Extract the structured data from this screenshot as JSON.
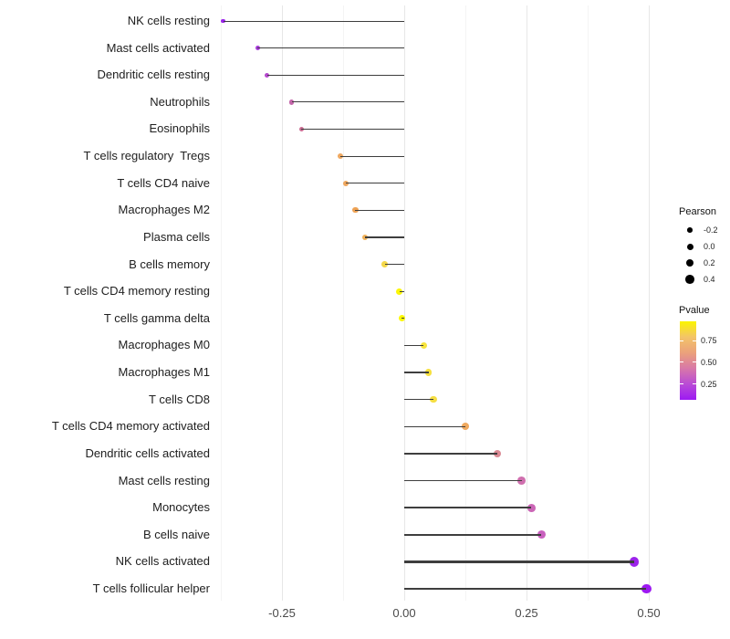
{
  "chart_data": {
    "type": "scatter",
    "variant": "horizontal-lollipop",
    "title": "",
    "xlabel": "",
    "ylabel": "",
    "xlim": [
      -0.385,
      0.565
    ],
    "x_ticks": [
      {
        "value": -0.25,
        "label": "-0.25"
      },
      {
        "value": 0.0,
        "label": "0.00"
      },
      {
        "value": 0.25,
        "label": "0.25"
      },
      {
        "value": 0.5,
        "label": "0.50"
      }
    ],
    "x_minor_ticks": [
      -0.375,
      -0.125,
      0.125,
      0.375
    ],
    "grid": "vertical major and minor gridlines, light gray, no axis lines",
    "points": [
      {
        "label": "NK cells resting",
        "pearson": -0.37,
        "pvalue": 0.08,
        "color": "#9B22EC"
      },
      {
        "label": "Mast cells activated",
        "pearson": -0.3,
        "pvalue": 0.15,
        "color": "#A93BDD"
      },
      {
        "label": "Dendritic cells resting",
        "pearson": -0.28,
        "pvalue": 0.2,
        "color": "#B548CE"
      },
      {
        "label": "Neutrophils",
        "pearson": -0.23,
        "pvalue": 0.33,
        "color": "#C466AA"
      },
      {
        "label": "Eosinophils",
        "pearson": -0.21,
        "pvalue": 0.4,
        "color": "#CB6B92"
      },
      {
        "label": "T cells regulatory  Tregs",
        "pearson": -0.13,
        "pvalue": 0.65,
        "color": "#EFA860"
      },
      {
        "label": "T cells CD4 naive",
        "pearson": -0.12,
        "pvalue": 0.65,
        "color": "#EFA75E"
      },
      {
        "label": "Macrophages M2",
        "pearson": -0.1,
        "pvalue": 0.62,
        "color": "#EEA254"
      },
      {
        "label": "Plasma cells",
        "pearson": -0.08,
        "pvalue": 0.7,
        "color": "#F0B158"
      },
      {
        "label": "B cells memory",
        "pearson": -0.04,
        "pvalue": 0.8,
        "color": "#F4D84A"
      },
      {
        "label": "T cells CD4 memory resting",
        "pearson": -0.01,
        "pvalue": 0.95,
        "color": "#FBF607"
      },
      {
        "label": "T cells gamma delta",
        "pearson": -0.005,
        "pvalue": 0.96,
        "color": "#FCF903"
      },
      {
        "label": "Macrophages M0",
        "pearson": 0.04,
        "pvalue": 0.85,
        "color": "#F7E43C"
      },
      {
        "label": "Macrophages M1",
        "pearson": 0.05,
        "pvalue": 0.84,
        "color": "#F6E03E"
      },
      {
        "label": "T cells CD8",
        "pearson": 0.06,
        "pvalue": 0.83,
        "color": "#F5DE42"
      },
      {
        "label": "T cells CD4 memory activated",
        "pearson": 0.125,
        "pvalue": 0.66,
        "color": "#EFA95F"
      },
      {
        "label": "Dendritic cells activated",
        "pearson": 0.19,
        "pvalue": 0.46,
        "color": "#DA8A94"
      },
      {
        "label": "Mast cells resting",
        "pearson": 0.24,
        "pvalue": 0.36,
        "color": "#CF6FAE"
      },
      {
        "label": "Monocytes",
        "pearson": 0.26,
        "pvalue": 0.31,
        "color": "#CB66B6"
      },
      {
        "label": "B cells naive",
        "pearson": 0.28,
        "pvalue": 0.29,
        "color": "#C961BE"
      },
      {
        "label": "NK cells activated",
        "pearson": 0.47,
        "pvalue": 0.07,
        "color": "#9C24EA"
      },
      {
        "label": "T cells follicular helper",
        "pearson": 0.495,
        "pvalue": 0.05,
        "color": "#9D19F1"
      }
    ],
    "legend_pearson": {
      "title": "Pearson",
      "entries": [
        {
          "value": -0.2,
          "label": "-0.2"
        },
        {
          "value": 0.0,
          "label": "0.0"
        },
        {
          "value": 0.2,
          "label": "0.2"
        },
        {
          "value": 0.4,
          "label": "0.4"
        }
      ],
      "dot_color": "#000000"
    },
    "legend_pvalue": {
      "title": "Pvalue",
      "ticks": [
        {
          "value": 0.75,
          "label": "0.75"
        },
        {
          "value": 0.5,
          "label": "0.50"
        },
        {
          "value": 0.25,
          "label": "0.25"
        }
      ],
      "range_top_to_bottom": [
        0.97,
        0.07
      ],
      "gradient_top_to_bottom": [
        "#FBF500",
        "#F3C468",
        "#EBA17B",
        "#D878A8",
        "#B94BD6",
        "#9D1AF2"
      ]
    },
    "colors": {
      "stem": "#3e3e3e",
      "grid_major": "#e7e7e7",
      "grid_minor": "#f4f4f4",
      "background": "#ffffff",
      "category_text": "#202020",
      "axis_text": "#4a4a4a"
    }
  }
}
